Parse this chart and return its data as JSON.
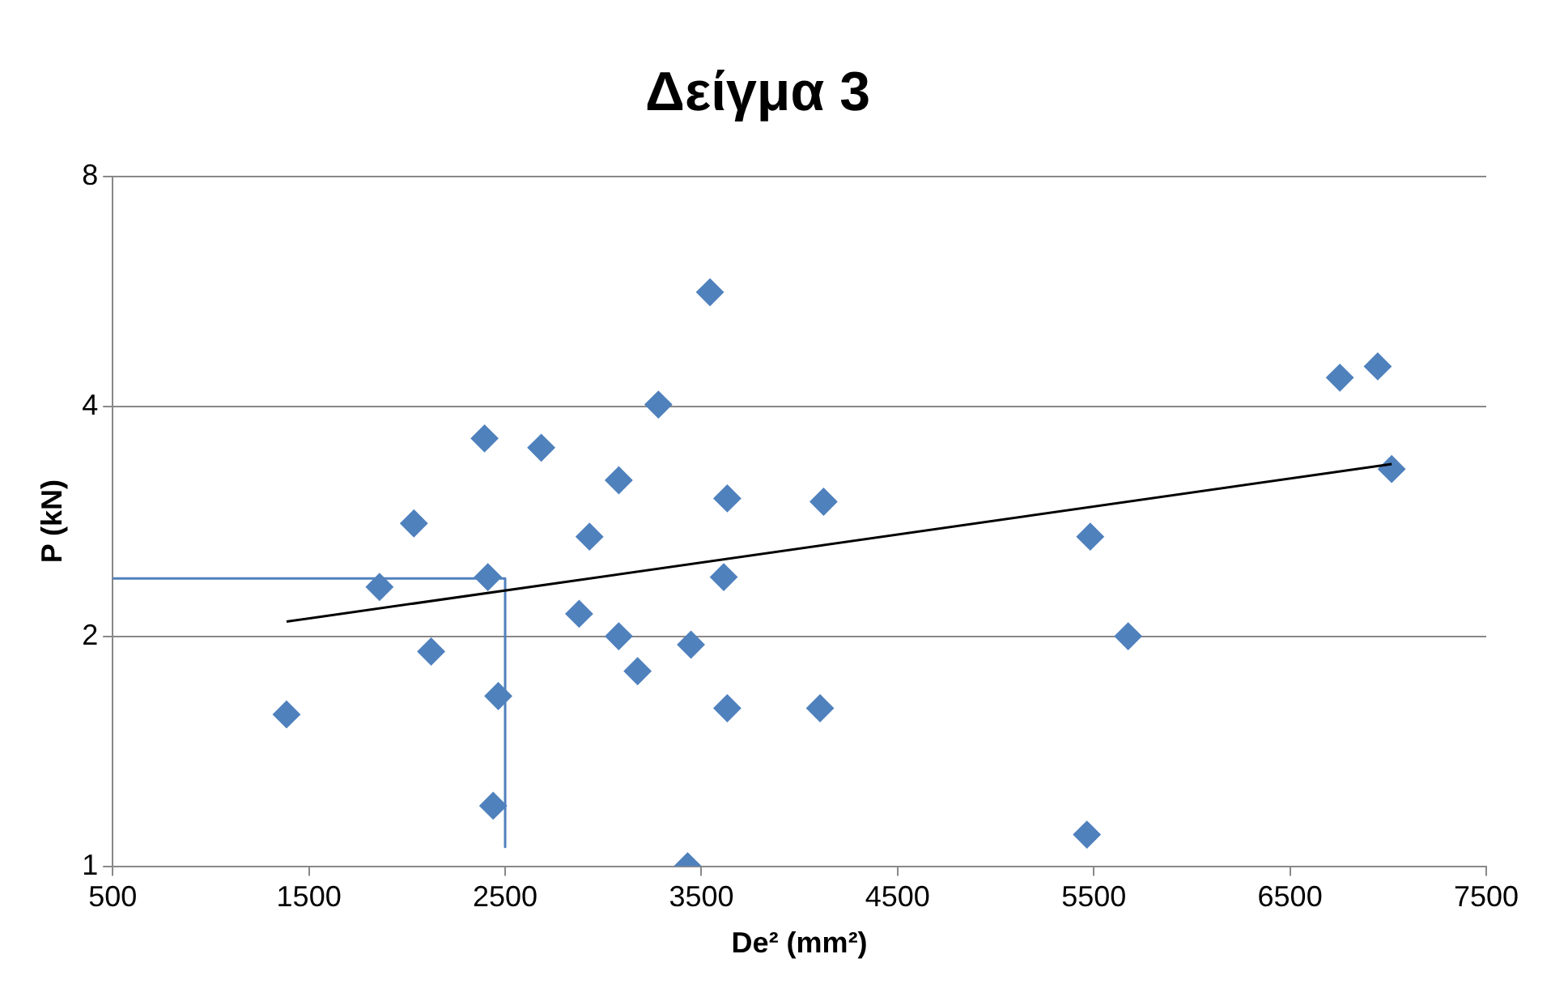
{
  "chart_data": {
    "type": "scatter",
    "title": "Δείγμα 3",
    "xlabel": "De² (mm²)",
    "ylabel": "P (kN)",
    "xlim": [
      500,
      7500
    ],
    "xticks": [
      500,
      1500,
      2500,
      3500,
      4500,
      5500,
      6500,
      7500
    ],
    "ylim": [
      1,
      8
    ],
    "yticks": [
      1,
      2,
      4,
      8
    ],
    "log": "y",
    "grid": "y",
    "legend": false,
    "marker": "diamond",
    "series": [
      {
        "type": "scatter",
        "color": "#4f81bd",
        "x": [
          1386,
          1860,
          2035,
          2123,
          2395,
          2412,
          2465,
          2439,
          2684,
          2877,
          2930,
          3079,
          3079,
          3175,
          3281,
          3447,
          3430,
          3544,
          3632,
          3614,
          3632,
          4123,
          4105,
          5482,
          5465,
          5675,
          6754,
          6947,
          7018
        ],
        "values": [
          1.58,
          2.32,
          2.81,
          1.91,
          3.63,
          2.39,
          1.67,
          1.2,
          3.53,
          2.14,
          2.7,
          3.2,
          2,
          1.8,
          4.02,
          1.95,
          1,
          5.64,
          3.03,
          2.39,
          1.61,
          3,
          1.61,
          2.7,
          1.1,
          2,
          4.36,
          4.51,
          3.31
        ]
      },
      {
        "type": "line",
        "color": "#000000",
        "marker": "none",
        "x": [
          1386,
          7018
        ],
        "values": [
          2.09,
          3.36
        ]
      },
      {
        "type": "line",
        "color": "#4f81bd",
        "marker": "none",
        "x": [
          500,
          2500,
          2500
        ],
        "values": [
          2.38,
          2.38,
          1.06
        ]
      }
    ]
  }
}
